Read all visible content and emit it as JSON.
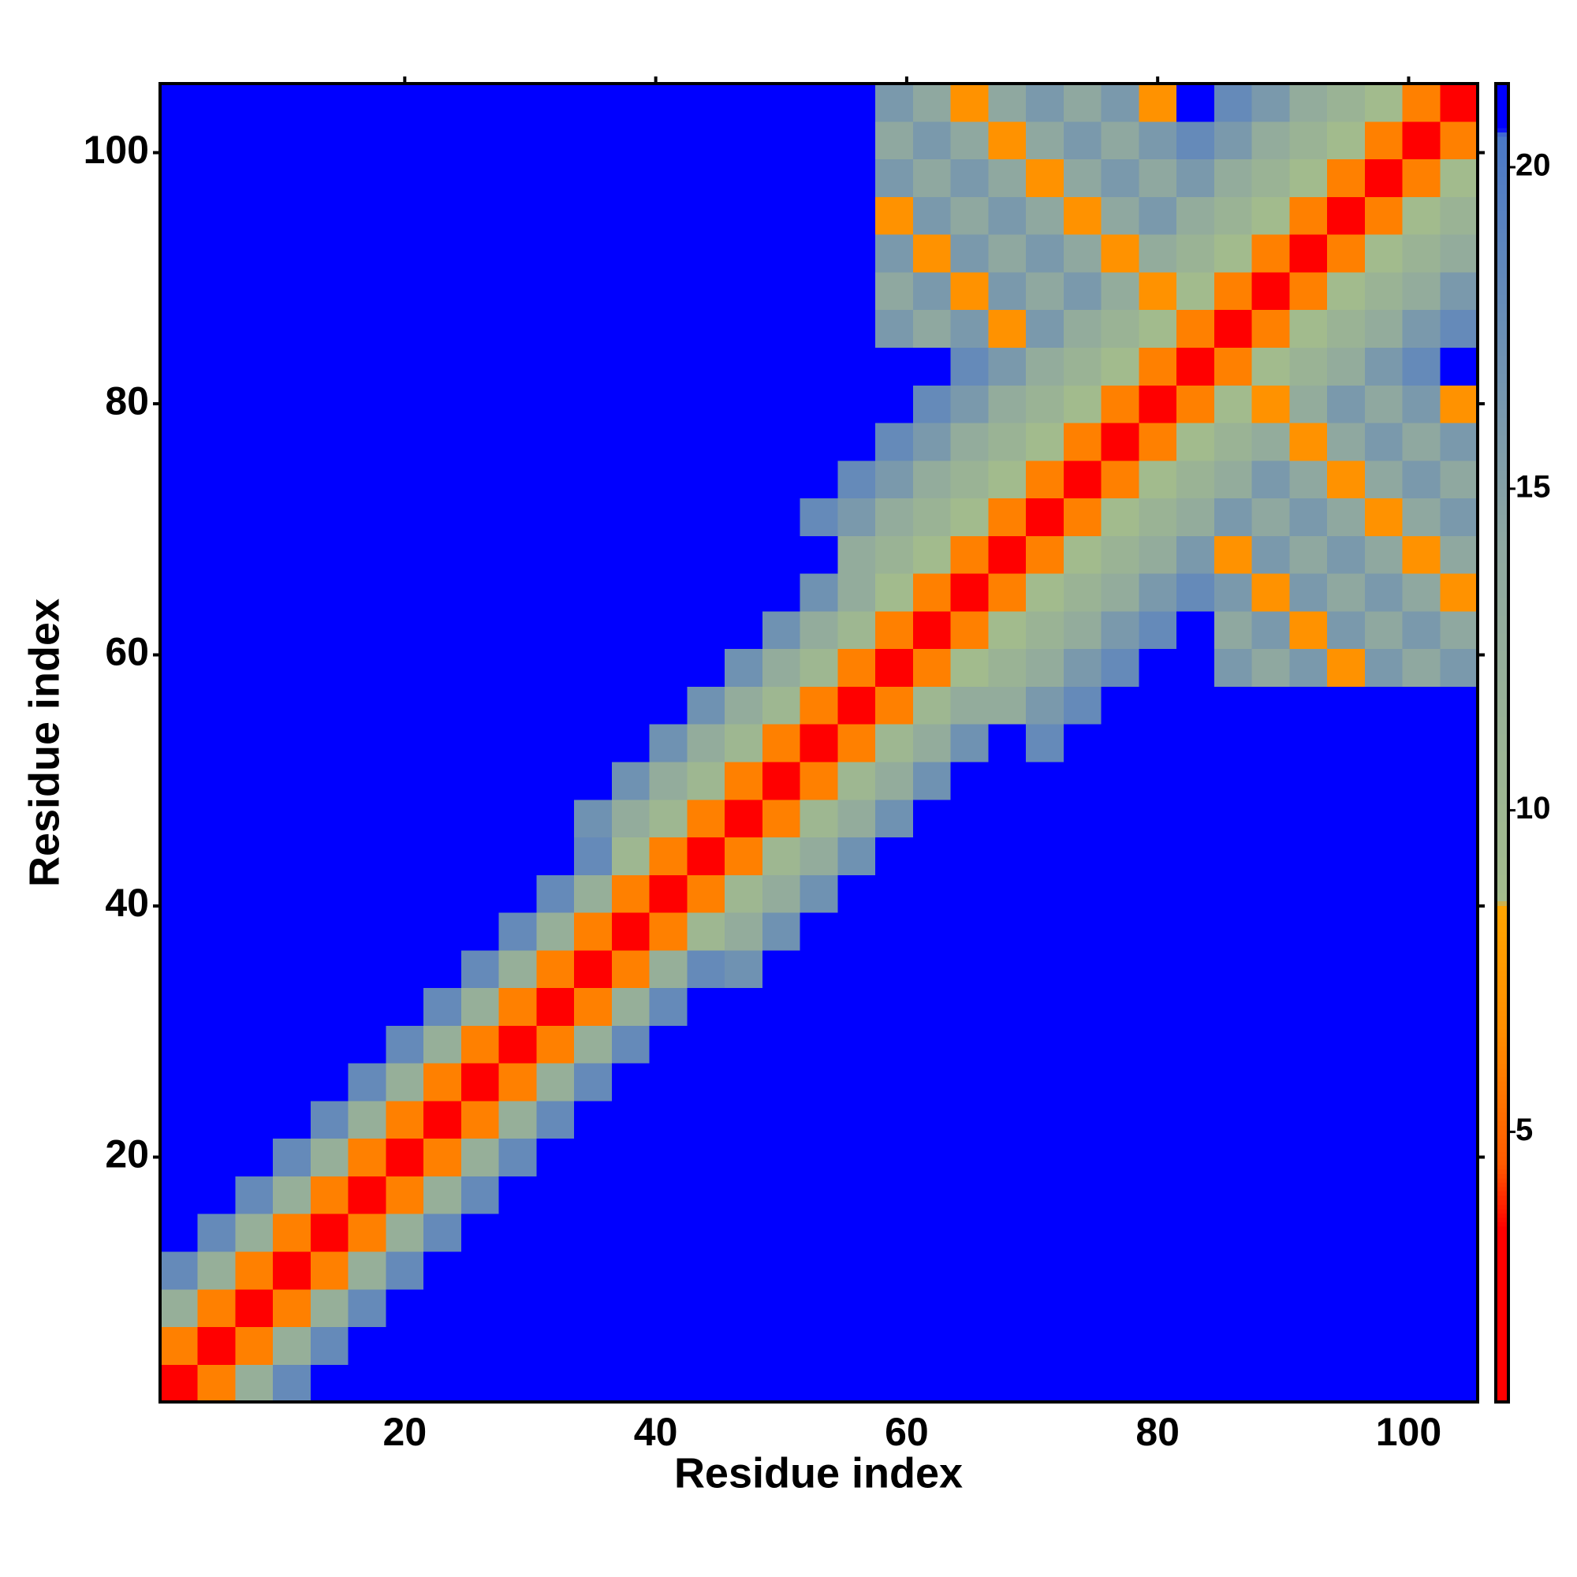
{
  "chart_data": {
    "type": "heatmap",
    "xlabel": "Residue index",
    "ylabel": "Residue index",
    "xlim": [
      0.5,
      105.5
    ],
    "ylim": [
      0.5,
      105.5
    ],
    "xticks": [
      20,
      40,
      60,
      80,
      100
    ],
    "yticks": [
      20,
      40,
      60,
      80,
      100
    ],
    "zlim": [
      0.8,
      21.3
    ],
    "zticks": [
      5,
      10,
      15,
      20
    ],
    "colorscale": [
      [
        0.8,
        "#ff0000"
      ],
      [
        3.5,
        "#ff0000"
      ],
      [
        4.5,
        "#ff5a00"
      ],
      [
        6.5,
        "#ff8c00"
      ],
      [
        8.5,
        "#ffa500"
      ],
      [
        8.6,
        "#a3bc8c"
      ],
      [
        14,
        "#8fa8a0"
      ],
      [
        20.5,
        "#4a78c8"
      ],
      [
        20.6,
        "#0000ff"
      ],
      [
        21.3,
        "#0000ff"
      ]
    ],
    "x": [
      2,
      5,
      8,
      11,
      14,
      17,
      20,
      23,
      26,
      29,
      32,
      35,
      38,
      41,
      44,
      47,
      50,
      53,
      56,
      59,
      62,
      65,
      68,
      71,
      74,
      77,
      80,
      83,
      86,
      89,
      92,
      95,
      98,
      101,
      104
    ],
    "y": [
      2,
      5,
      8,
      11,
      14,
      17,
      20,
      23,
      26,
      29,
      32,
      35,
      38,
      41,
      44,
      47,
      50,
      53,
      56,
      59,
      62,
      65,
      68,
      71,
      74,
      77,
      80,
      83,
      86,
      89,
      92,
      95,
      98,
      101,
      104
    ],
    "z": [
      [
        3,
        6,
        12,
        18,
        21,
        21,
        21,
        21,
        21,
        21,
        21,
        21,
        21,
        21,
        21,
        21,
        21,
        21,
        21,
        21,
        21,
        21,
        21,
        21,
        21,
        21,
        21,
        21,
        21,
        21,
        21,
        21,
        21,
        21,
        21
      ],
      [
        6,
        3,
        6,
        12,
        18,
        21,
        21,
        21,
        21,
        21,
        21,
        21,
        21,
        21,
        21,
        21,
        21,
        21,
        21,
        21,
        21,
        21,
        21,
        21,
        21,
        21,
        21,
        21,
        21,
        21,
        21,
        21,
        21,
        21,
        21
      ],
      [
        12,
        6,
        3,
        6,
        12,
        18,
        21,
        21,
        21,
        21,
        21,
        21,
        21,
        21,
        21,
        21,
        21,
        21,
        21,
        21,
        21,
        21,
        21,
        21,
        21,
        21,
        21,
        21,
        21,
        21,
        21,
        21,
        21,
        21,
        21
      ],
      [
        18,
        12,
        6,
        3,
        6,
        12,
        18,
        21,
        21,
        21,
        21,
        21,
        21,
        21,
        21,
        21,
        21,
        21,
        21,
        21,
        21,
        21,
        21,
        21,
        21,
        21,
        21,
        21,
        21,
        21,
        21,
        21,
        21,
        21,
        21
      ],
      [
        21,
        18,
        12,
        6,
        3,
        6,
        12,
        18,
        21,
        21,
        21,
        21,
        21,
        21,
        21,
        21,
        21,
        21,
        21,
        21,
        21,
        21,
        21,
        21,
        21,
        21,
        21,
        21,
        21,
        21,
        21,
        21,
        21,
        21,
        21
      ],
      [
        21,
        21,
        18,
        12,
        6,
        3,
        6,
        12,
        18,
        21,
        21,
        21,
        21,
        21,
        21,
        21,
        21,
        21,
        21,
        21,
        21,
        21,
        21,
        21,
        21,
        21,
        21,
        21,
        21,
        21,
        21,
        21,
        21,
        21,
        21
      ],
      [
        21,
        21,
        21,
        18,
        12,
        6,
        3,
        6,
        12,
        18,
        21,
        21,
        21,
        21,
        21,
        21,
        21,
        21,
        21,
        21,
        21,
        21,
        21,
        21,
        21,
        21,
        21,
        21,
        21,
        21,
        21,
        21,
        21,
        21,
        21
      ],
      [
        21,
        21,
        21,
        21,
        18,
        12,
        6,
        3,
        6,
        12,
        18,
        21,
        21,
        21,
        21,
        21,
        21,
        21,
        21,
        21,
        21,
        21,
        21,
        21,
        21,
        21,
        21,
        21,
        21,
        21,
        21,
        21,
        21,
        21,
        21
      ],
      [
        21,
        21,
        21,
        21,
        21,
        18,
        12,
        6,
        3,
        6,
        12,
        18,
        21,
        21,
        21,
        21,
        21,
        21,
        21,
        21,
        21,
        21,
        21,
        21,
        21,
        21,
        21,
        21,
        21,
        21,
        21,
        21,
        21,
        21,
        21
      ],
      [
        21,
        21,
        21,
        21,
        21,
        21,
        18,
        12,
        6,
        3,
        6,
        12,
        18,
        21,
        21,
        21,
        21,
        21,
        21,
        21,
        21,
        21,
        21,
        21,
        21,
        21,
        21,
        21,
        21,
        21,
        21,
        21,
        21,
        21,
        21
      ],
      [
        21,
        21,
        21,
        21,
        21,
        21,
        21,
        18,
        12,
        6,
        3,
        6,
        12,
        18,
        21,
        21,
        21,
        21,
        21,
        21,
        21,
        21,
        21,
        21,
        21,
        21,
        21,
        21,
        21,
        21,
        21,
        21,
        21,
        21,
        21
      ],
      [
        21,
        21,
        21,
        21,
        21,
        21,
        21,
        21,
        18,
        12,
        6,
        3,
        6,
        12,
        18,
        17,
        21,
        21,
        21,
        21,
        21,
        21,
        21,
        21,
        21,
        21,
        21,
        21,
        21,
        21,
        21,
        21,
        21,
        21,
        21
      ],
      [
        21,
        21,
        21,
        21,
        21,
        21,
        21,
        21,
        21,
        18,
        12,
        6,
        3,
        6,
        10,
        13,
        17,
        21,
        21,
        21,
        21,
        21,
        21,
        21,
        21,
        21,
        21,
        21,
        21,
        21,
        21,
        21,
        21,
        21,
        21
      ],
      [
        21,
        21,
        21,
        21,
        21,
        21,
        21,
        21,
        21,
        21,
        18,
        12,
        6,
        3,
        6,
        10,
        13,
        17,
        21,
        21,
        21,
        21,
        21,
        21,
        21,
        21,
        21,
        21,
        21,
        21,
        21,
        21,
        21,
        21,
        21
      ],
      [
        21,
        21,
        21,
        21,
        21,
        21,
        21,
        21,
        21,
        21,
        21,
        18,
        10,
        6,
        3,
        6,
        10,
        13,
        17,
        21,
        21,
        21,
        21,
        21,
        21,
        21,
        21,
        21,
        21,
        21,
        21,
        21,
        21,
        21,
        21
      ],
      [
        21,
        21,
        21,
        21,
        21,
        21,
        21,
        21,
        21,
        21,
        21,
        17,
        13,
        10,
        6,
        3,
        6,
        10,
        13,
        17,
        21,
        21,
        21,
        21,
        21,
        21,
        21,
        21,
        21,
        21,
        21,
        21,
        21,
        21,
        21
      ],
      [
        21,
        21,
        21,
        21,
        21,
        21,
        21,
        21,
        21,
        21,
        21,
        21,
        17,
        13,
        10,
        6,
        3,
        6,
        10,
        13,
        17,
        21,
        21,
        21,
        21,
        21,
        21,
        21,
        21,
        21,
        21,
        21,
        21,
        21,
        21
      ],
      [
        21,
        21,
        21,
        21,
        21,
        21,
        21,
        21,
        21,
        21,
        21,
        21,
        21,
        17,
        13,
        10,
        6,
        3,
        6,
        10,
        13,
        17,
        21,
        18,
        21,
        21,
        21,
        21,
        21,
        21,
        21,
        21,
        21,
        21,
        21
      ],
      [
        21,
        21,
        21,
        21,
        21,
        21,
        21,
        21,
        21,
        21,
        21,
        21,
        21,
        21,
        17,
        13,
        10,
        6,
        3,
        6,
        10,
        13,
        13,
        16,
        18,
        21,
        21,
        21,
        21,
        21,
        21,
        21,
        21,
        21,
        21
      ],
      [
        21,
        21,
        21,
        21,
        21,
        21,
        21,
        21,
        21,
        21,
        21,
        21,
        21,
        21,
        21,
        17,
        13,
        10,
        6,
        3,
        6,
        9,
        11,
        13,
        16,
        18,
        21,
        21,
        16,
        14,
        16,
        7,
        16,
        14,
        16
      ],
      [
        21,
        21,
        21,
        21,
        21,
        21,
        21,
        21,
        21,
        21,
        21,
        21,
        21,
        21,
        21,
        21,
        17,
        13,
        10,
        6,
        3,
        6,
        9,
        11,
        13,
        16,
        18,
        21,
        14,
        16,
        7,
        16,
        14,
        16,
        14
      ],
      [
        21,
        21,
        21,
        21,
        21,
        21,
        21,
        21,
        21,
        21,
        21,
        21,
        21,
        21,
        21,
        21,
        21,
        17,
        13,
        9,
        6,
        3,
        6,
        9,
        11,
        13,
        16,
        18,
        16,
        7,
        16,
        14,
        16,
        14,
        7
      ],
      [
        21,
        21,
        21,
        21,
        21,
        21,
        21,
        21,
        21,
        21,
        21,
        21,
        21,
        21,
        21,
        21,
        21,
        21,
        13,
        11,
        9,
        6,
        3,
        6,
        9,
        11,
        13,
        16,
        7,
        16,
        14,
        16,
        14,
        7,
        14
      ],
      [
        21,
        21,
        21,
        21,
        21,
        21,
        21,
        21,
        21,
        21,
        21,
        21,
        21,
        21,
        21,
        21,
        21,
        18,
        16,
        13,
        11,
        9,
        6,
        3,
        6,
        9,
        11,
        13,
        16,
        14,
        16,
        14,
        7,
        14,
        16
      ],
      [
        21,
        21,
        21,
        21,
        21,
        21,
        21,
        21,
        21,
        21,
        21,
        21,
        21,
        21,
        21,
        21,
        21,
        21,
        18,
        16,
        13,
        11,
        9,
        6,
        3,
        6,
        9,
        11,
        13,
        16,
        14,
        7,
        14,
        16,
        14
      ],
      [
        21,
        21,
        21,
        21,
        21,
        21,
        21,
        21,
        21,
        21,
        21,
        21,
        21,
        21,
        21,
        21,
        21,
        21,
        21,
        18,
        16,
        13,
        11,
        9,
        6,
        3,
        6,
        9,
        11,
        13,
        7,
        14,
        16,
        14,
        16
      ],
      [
        21,
        21,
        21,
        21,
        21,
        21,
        21,
        21,
        21,
        21,
        21,
        21,
        21,
        21,
        21,
        21,
        21,
        21,
        21,
        21,
        18,
        16,
        13,
        11,
        9,
        6,
        3,
        6,
        9,
        7,
        13,
        16,
        14,
        16,
        7
      ],
      [
        21,
        21,
        21,
        21,
        21,
        21,
        21,
        21,
        21,
        21,
        21,
        21,
        21,
        21,
        21,
        21,
        21,
        21,
        21,
        21,
        21,
        18,
        16,
        13,
        11,
        9,
        6,
        3,
        6,
        9,
        11,
        13,
        16,
        18,
        21
      ],
      [
        21,
        21,
        21,
        21,
        21,
        21,
        21,
        21,
        21,
        21,
        21,
        21,
        21,
        21,
        21,
        21,
        21,
        21,
        21,
        16,
        14,
        16,
        7,
        16,
        13,
        11,
        9,
        6,
        3,
        6,
        9,
        11,
        13,
        16,
        18
      ],
      [
        21,
        21,
        21,
        21,
        21,
        21,
        21,
        21,
        21,
        21,
        21,
        21,
        21,
        21,
        21,
        21,
        21,
        21,
        21,
        14,
        16,
        7,
        16,
        14,
        16,
        13,
        7,
        9,
        6,
        3,
        6,
        9,
        11,
        13,
        16
      ],
      [
        21,
        21,
        21,
        21,
        21,
        21,
        21,
        21,
        21,
        21,
        21,
        21,
        21,
        21,
        21,
        21,
        21,
        21,
        21,
        16,
        7,
        16,
        14,
        16,
        14,
        7,
        13,
        11,
        9,
        6,
        3,
        6,
        9,
        11,
        13
      ],
      [
        21,
        21,
        21,
        21,
        21,
        21,
        21,
        21,
        21,
        21,
        21,
        21,
        21,
        21,
        21,
        21,
        21,
        21,
        21,
        7,
        16,
        14,
        16,
        14,
        7,
        14,
        16,
        13,
        11,
        9,
        6,
        3,
        6,
        9,
        11
      ],
      [
        21,
        21,
        21,
        21,
        21,
        21,
        21,
        21,
        21,
        21,
        21,
        21,
        21,
        21,
        21,
        21,
        21,
        21,
        21,
        16,
        14,
        16,
        14,
        7,
        14,
        16,
        14,
        16,
        13,
        11,
        9,
        6,
        3,
        6,
        9
      ],
      [
        21,
        21,
        21,
        21,
        21,
        21,
        21,
        21,
        21,
        21,
        21,
        21,
        21,
        21,
        21,
        21,
        21,
        21,
        21,
        14,
        16,
        14,
        7,
        14,
        16,
        14,
        16,
        18,
        16,
        13,
        11,
        9,
        6,
        3,
        6
      ],
      [
        21,
        21,
        21,
        21,
        21,
        21,
        21,
        21,
        21,
        21,
        21,
        21,
        21,
        21,
        21,
        21,
        21,
        21,
        21,
        16,
        14,
        7,
        14,
        16,
        14,
        16,
        7,
        21,
        18,
        16,
        13,
        11,
        9,
        6,
        3
      ]
    ]
  }
}
